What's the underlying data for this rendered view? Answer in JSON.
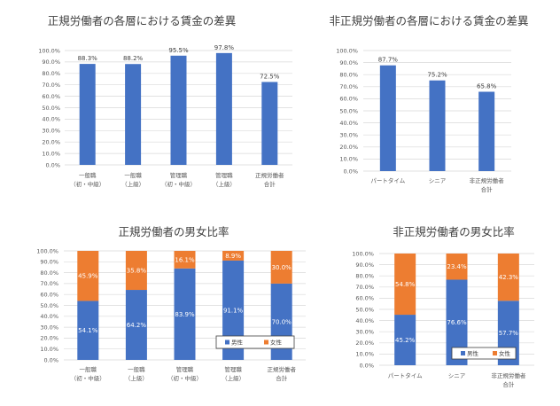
{
  "chart_data": [
    {
      "type": "bar",
      "title": "正規労働者の各層における賃金の差異",
      "categories": [
        [
          "一般職",
          "（初・中級）"
        ],
        [
          "一般職",
          "（上級）"
        ],
        [
          "管理職",
          "（初・中級）"
        ],
        [
          "管理職",
          "（上級）"
        ],
        [
          "正規労働者",
          "合計"
        ]
      ],
      "values": [
        88.3,
        88.2,
        95.5,
        97.8,
        72.5
      ],
      "value_labels": [
        "88.3%",
        "88.2%",
        "95.5%",
        "97.8%",
        "72.5%"
      ],
      "ylim": [
        0,
        100
      ],
      "yticks": [
        "0.0%",
        "10.0%",
        "20.0%",
        "30.0%",
        "40.0%",
        "50.0%",
        "60.0%",
        "70.0%",
        "80.0%",
        "90.0%",
        "100.0%"
      ],
      "grid": true,
      "color": "#4472c4"
    },
    {
      "type": "bar",
      "title": "非正規労働者の各層における賃金の差異",
      "categories": [
        [
          "パートタイム"
        ],
        [
          "シニア"
        ],
        [
          "非正規労働者",
          "合計"
        ]
      ],
      "values": [
        87.7,
        75.2,
        65.8
      ],
      "value_labels": [
        "87.7%",
        "75.2%",
        "65.8%"
      ],
      "ylim": [
        0,
        100
      ],
      "yticks": [
        "0.0%",
        "10.0%",
        "20.0%",
        "30.0%",
        "40.0%",
        "50.0%",
        "60.0%",
        "70.0%",
        "80.0%",
        "90.0%",
        "100.0%"
      ],
      "grid": true,
      "color": "#4472c4"
    },
    {
      "type": "stacked-bar",
      "title": "正規労働者の男女比率",
      "categories": [
        [
          "一般職",
          "（初・中級）"
        ],
        [
          "一般職",
          "（上級）"
        ],
        [
          "管理職",
          "（初・中級）"
        ],
        [
          "管理職",
          "（上級）"
        ],
        [
          "正規労働者",
          "合計"
        ]
      ],
      "series": [
        {
          "name": "男性",
          "values": [
            54.1,
            64.2,
            83.9,
            91.1,
            70.0
          ],
          "labels": [
            "54.1%",
            "64.2%",
            "83.9%",
            "91.1%",
            "70.0%"
          ],
          "color": "#4472c4"
        },
        {
          "name": "女性",
          "values": [
            45.9,
            35.8,
            16.1,
            8.9,
            30.0
          ],
          "labels": [
            "45.9%",
            "35.8%",
            "16.1%",
            "8.9%",
            "30.0%"
          ],
          "color": "#ed7d31"
        }
      ],
      "ylim": [
        0,
        100
      ],
      "yticks": [
        "0.0%",
        "10.0%",
        "20.0%",
        "30.0%",
        "40.0%",
        "50.0%",
        "60.0%",
        "70.0%",
        "80.0%",
        "90.0%",
        "100.0%"
      ],
      "grid": true,
      "legend": "bottom-right"
    },
    {
      "type": "stacked-bar",
      "title": "非正規労働者の男女比率",
      "categories": [
        [
          "パートタイム"
        ],
        [
          "シニア"
        ],
        [
          "非正規労働者",
          "合計"
        ]
      ],
      "series": [
        {
          "name": "男性",
          "values": [
            45.2,
            76.6,
            57.7
          ],
          "labels": [
            "45.2%",
            "76.6%",
            "57.7%"
          ],
          "color": "#4472c4"
        },
        {
          "name": "女性",
          "values": [
            54.8,
            23.4,
            42.3
          ],
          "labels": [
            "54.8%",
            "23.4%",
            "42.3%"
          ],
          "color": "#ed7d31"
        }
      ],
      "ylim": [
        0,
        100
      ],
      "yticks": [
        "0.0%",
        "10.0%",
        "20.0%",
        "30.0%",
        "40.0%",
        "50.0%",
        "60.0%",
        "70.0%",
        "80.0%",
        "90.0%",
        "100.0%"
      ],
      "grid": true,
      "legend": "bottom-right"
    }
  ]
}
